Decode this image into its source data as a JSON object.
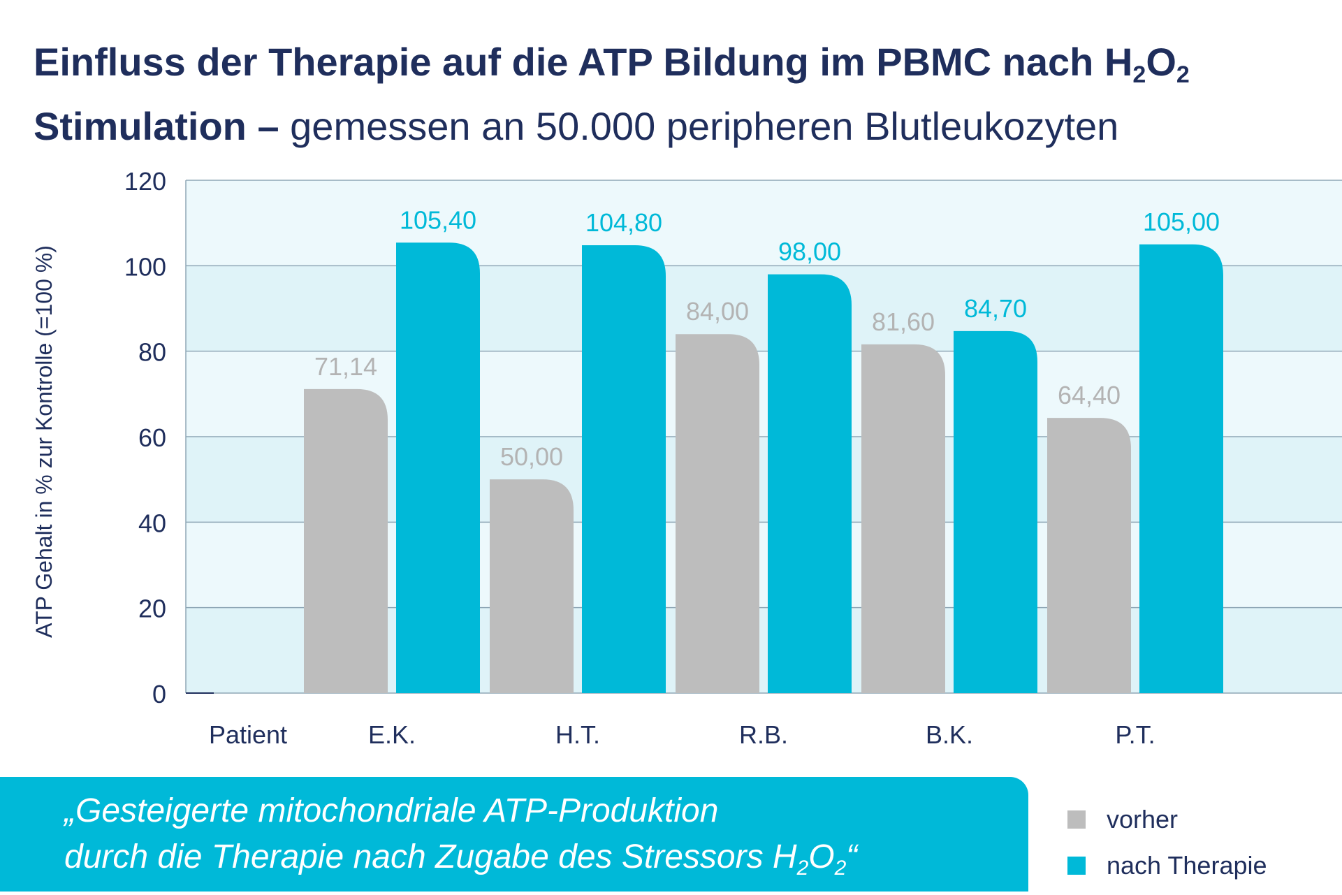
{
  "title": {
    "line1": "Einfluss der Therapie auf die ATP Bildung im PBMC nach H",
    "sub1": "2",
    "mid": "O",
    "sub2": "2",
    "line2_bold": "Stimulation –",
    "line2_light": " gemessen an 50.000 peripheren Blutleukozyten"
  },
  "chart_data": {
    "type": "bar",
    "ylabel": "ATP Gehalt in % zur Kontrolle (=100 %)",
    "xlabel": "Patient",
    "categories": [
      "E.K.",
      "H.T.",
      "R.B.",
      "B.K.",
      "P.T."
    ],
    "series": [
      {
        "name": "vorher",
        "color": "#bdbdbd",
        "values": [
          71.14,
          50.0,
          84.0,
          81.6,
          64.4
        ],
        "labels": [
          "71,14",
          "50,00",
          "84,00",
          "81,60",
          "64,40"
        ]
      },
      {
        "name": "nach Therapie",
        "color": "#00b9d8",
        "values": [
          105.4,
          104.8,
          98.0,
          84.7,
          105.0
        ],
        "labels": [
          "105,40",
          "104,80",
          "98,00",
          "84,70",
          "105,00"
        ]
      }
    ],
    "ylim": [
      0,
      120
    ],
    "yticks": [
      "0",
      "20",
      "40",
      "60",
      "80",
      "100",
      "120"
    ],
    "grid": true,
    "legend": "bottom-right"
  },
  "quote": {
    "line1": "„Gesteigerte mitochondriale ATP-Produktion",
    "line2": "durch die Therapie nach Zugabe des Stressors H",
    "sub1": "2",
    "mid": "O",
    "sub2": "2",
    "end": "“"
  },
  "legend": {
    "vorher": "vorher",
    "nach": "nach Therapie"
  },
  "colors": {
    "title": "#1f2e5c",
    "accent": "#00b9d8",
    "grey": "#bdbdbd",
    "band_light": "#edf9fc",
    "band_dark": "#dff3f8"
  }
}
